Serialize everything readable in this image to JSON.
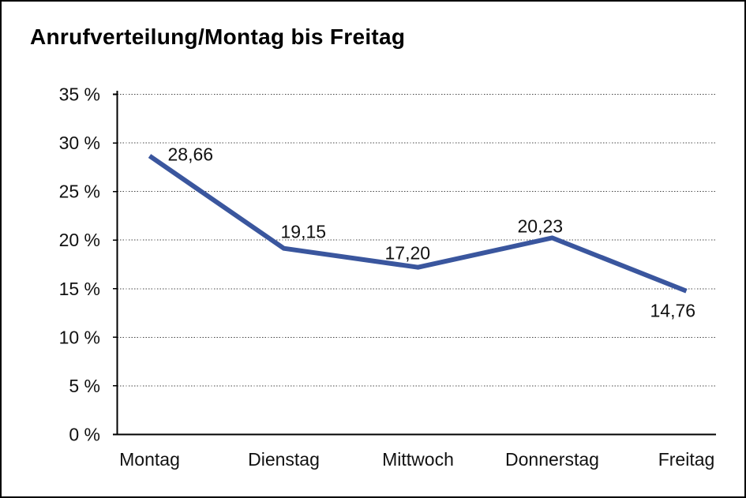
{
  "page": {
    "background": "#ffffff",
    "border_color": "#000000"
  },
  "chart_data": {
    "type": "line",
    "title": "Anrufverteilung/Montag bis Freitag",
    "xlabel": "",
    "ylabel": "",
    "categories": [
      "Montag",
      "Dienstag",
      "Mittwoch",
      "Donnerstag",
      "Freitag"
    ],
    "values": [
      28.66,
      19.15,
      17.2,
      20.23,
      14.76
    ],
    "value_labels": [
      "28,66",
      "19,15",
      "17,20",
      "20,23",
      "14,76"
    ],
    "label_positions": [
      "right-of-point",
      "above-point",
      "above-point",
      "above-point",
      "below-point"
    ],
    "ylim": [
      0,
      35
    ],
    "ytick_step": 5,
    "yticks": [
      {
        "value": 0,
        "label": "0 %"
      },
      {
        "value": 5,
        "label": "5 %"
      },
      {
        "value": 10,
        "label": "10 %"
      },
      {
        "value": 15,
        "label": "15 %"
      },
      {
        "value": 20,
        "label": "20 %"
      },
      {
        "value": 25,
        "label": "25 %"
      },
      {
        "value": 30,
        "label": "30 %"
      },
      {
        "value": 35,
        "label": "35 %"
      }
    ],
    "grid": "horizontal-dotted",
    "legend": "none",
    "series_color": "#3A569E",
    "axis_color": "#000000",
    "gridline_color": "#444444"
  }
}
